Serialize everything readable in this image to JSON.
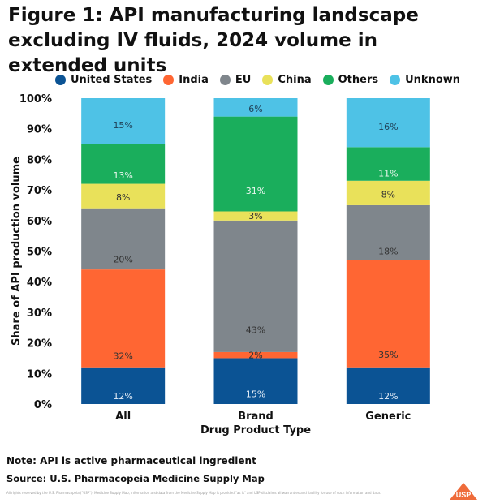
{
  "title": "Figure 1: API manufacturing landscape excluding IV fluids, 2024 volume in extended units",
  "note": "Note: API is active pharmaceutical ingredient",
  "source": "Source: U.S. Pharmacopeia Medicine Supply Map",
  "rights": "All rights reserved by the U.S. Pharmacopeia (\"USP\"). Medicine Supply Map, information and data from the Medicine Supply Map is provided \"as is\" and USP disclaims all warranties and liability for use of such information and data.",
  "logo_text": "USP",
  "colors": {
    "United States": "#0b5394",
    "India": "#ff6633",
    "EU": "#7f868c",
    "China": "#e9e15a",
    "Others": "#1aae5c",
    "Unknown": "#4ec2e6",
    "logo": "#ef6b3a"
  },
  "chart_data": {
    "type": "bar",
    "stacked": true,
    "categories": [
      "All",
      "Brand",
      "Generic"
    ],
    "series": [
      {
        "name": "United States",
        "values": [
          12,
          15,
          12
        ]
      },
      {
        "name": "India",
        "values": [
          32,
          2,
          35
        ]
      },
      {
        "name": "EU",
        "values": [
          20,
          43,
          18
        ]
      },
      {
        "name": "China",
        "values": [
          8,
          3,
          8
        ]
      },
      {
        "name": "Others",
        "values": [
          13,
          31,
          11
        ]
      },
      {
        "name": "Unknown",
        "values": [
          15,
          6,
          16
        ]
      }
    ],
    "data_labels": [
      [
        "12%",
        "32%",
        "20%",
        "8%",
        "13%",
        "15%"
      ],
      [
        "15%",
        "2%",
        "43%",
        "3%",
        "31%",
        "6%"
      ],
      [
        "12%",
        "35%",
        "18%",
        "8%",
        "11%",
        "16%"
      ]
    ],
    "xlabel": "Drug Product Type",
    "ylabel": "Share of API production volume",
    "ylim": [
      0,
      100
    ],
    "yticks": [
      "0%",
      "10%",
      "20%",
      "30%",
      "40%",
      "50%",
      "60%",
      "70%",
      "80%",
      "90%",
      "100%"
    ],
    "legend": [
      "United States",
      "India",
      "EU",
      "China",
      "Others",
      "Unknown"
    ],
    "legend_position": "top",
    "grid": false
  }
}
